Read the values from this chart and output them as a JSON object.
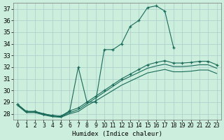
{
  "bg_color": "#cceedd",
  "grid_color": "#aacccc",
  "line_color": "#1a6b5a",
  "xlabel": "Humidex (Indice chaleur)",
  "xlim": [
    -0.5,
    23.5
  ],
  "ylim": [
    27.5,
    37.5
  ],
  "yticks": [
    28,
    29,
    30,
    31,
    32,
    33,
    34,
    35,
    36,
    37
  ],
  "xticks": [
    0,
    1,
    2,
    3,
    4,
    5,
    6,
    7,
    8,
    9,
    10,
    11,
    12,
    13,
    14,
    15,
    16,
    17,
    18,
    19,
    20,
    21,
    22,
    23
  ],
  "series": [
    {
      "x": [
        0,
        1,
        2,
        3,
        4,
        5,
        6,
        7,
        8,
        9,
        10,
        11,
        12,
        13,
        14,
        15,
        16,
        17,
        18,
        19,
        20,
        21,
        22,
        23
      ],
      "y": [
        28.8,
        28.2,
        28.2,
        28.0,
        27.85,
        27.8,
        28.2,
        32.0,
        29.0,
        29.0,
        33.5,
        33.5,
        34.0,
        35.5,
        36.0,
        37.1,
        37.25,
        36.8,
        33.7,
        null,
        null,
        null,
        null,
        null
      ],
      "marker": true
    },
    {
      "x": [
        0,
        1,
        2,
        3,
        4,
        5,
        6,
        7,
        8,
        9,
        10,
        11,
        12,
        13,
        14,
        15,
        16,
        17,
        18,
        19,
        20,
        21,
        22,
        23
      ],
      "y": [
        28.8,
        28.2,
        28.2,
        28.0,
        27.85,
        27.8,
        28.25,
        28.5,
        29.0,
        29.5,
        30.0,
        30.5,
        31.0,
        31.4,
        31.8,
        32.2,
        32.4,
        32.55,
        32.35,
        32.35,
        32.4,
        32.5,
        32.5,
        32.2
      ],
      "marker": true
    },
    {
      "x": [
        0,
        1,
        2,
        3,
        4,
        5,
        6,
        7,
        8,
        9,
        10,
        11,
        12,
        13,
        14,
        15,
        16,
        17,
        18,
        19,
        20,
        21,
        22,
        23
      ],
      "y": [
        28.75,
        28.15,
        28.15,
        27.95,
        27.8,
        27.75,
        28.1,
        28.35,
        28.85,
        29.35,
        29.85,
        30.35,
        30.85,
        31.2,
        31.55,
        31.9,
        32.1,
        32.25,
        32.05,
        32.05,
        32.1,
        32.2,
        32.2,
        31.9
      ],
      "marker": false
    },
    {
      "x": [
        0,
        1,
        2,
        3,
        4,
        5,
        6,
        7,
        8,
        9,
        10,
        11,
        12,
        13,
        14,
        15,
        16,
        17,
        18,
        19,
        20,
        21,
        22,
        23
      ],
      "y": [
        28.7,
        28.1,
        28.1,
        27.9,
        27.75,
        27.7,
        28.0,
        28.2,
        28.7,
        29.1,
        29.55,
        30.0,
        30.45,
        30.8,
        31.15,
        31.5,
        31.65,
        31.8,
        31.6,
        31.6,
        31.65,
        31.75,
        31.75,
        31.45
      ],
      "marker": false
    }
  ]
}
